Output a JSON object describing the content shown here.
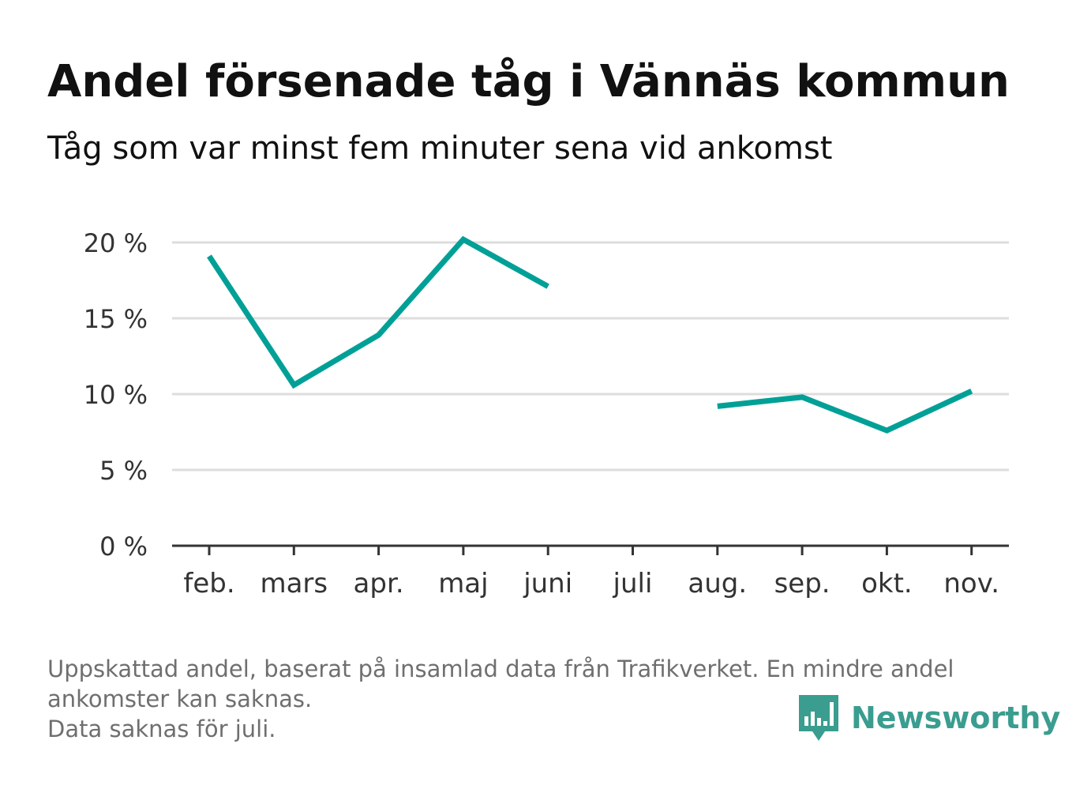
{
  "title": "Andel försenade tåg i Vännäs kommun",
  "subtitle": "Tåg som var minst fem minuter sena vid ankomst",
  "colors": {
    "line": "#00a097",
    "grid": "#dddddd",
    "axis": "#333333",
    "brand": "#3a9d8f",
    "footnote": "#6f6f6f"
  },
  "chart_data": {
    "type": "line",
    "categories": [
      "feb.",
      "mars",
      "apr.",
      "maj",
      "juni",
      "juli",
      "aug.",
      "sep.",
      "okt.",
      "nov."
    ],
    "series": [
      {
        "values": [
          19.1,
          10.6,
          13.9,
          20.2,
          17.1,
          null,
          9.2,
          9.8,
          7.6,
          10.2
        ]
      }
    ],
    "yticks": [
      "0 %",
      "5 %",
      "10 %",
      "15 %",
      "20 %"
    ],
    "ylim": [
      0,
      20
    ],
    "grid": true,
    "legend": "none"
  },
  "footnote": {
    "line1": "Uppskattad andel, baserat på insamlad data från Trafikverket. En mindre andel",
    "line2": "ankomster kan saknas.",
    "line3": "Data saknas för juli."
  },
  "brand": {
    "name": "Newsworthy",
    "icon": "bar-chart-speech-bubble-icon"
  }
}
